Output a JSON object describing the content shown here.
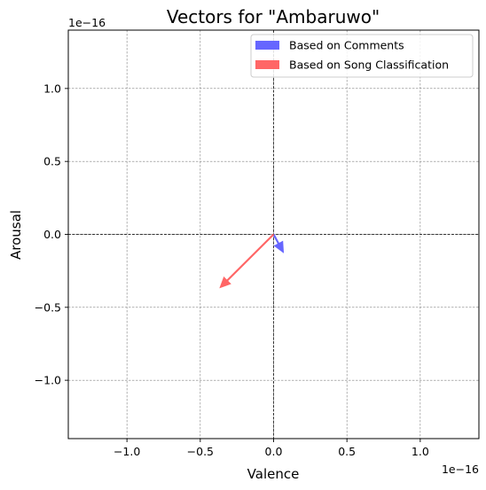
{
  "chart_data": {
    "type": "quiver",
    "title": "Vectors for \"Ambaruwo\"",
    "xlabel": "Valence",
    "ylabel": "Arousal",
    "x_offset_label": "1e−16",
    "y_offset_label": "1e−16",
    "xlim": [
      -1.4,
      1.4
    ],
    "ylim": [
      -1.4,
      1.4
    ],
    "xticks": [
      -1.0,
      -0.5,
      0.0,
      0.5,
      1.0
    ],
    "yticks": [
      -1.0,
      -0.5,
      0.0,
      0.5,
      1.0
    ],
    "xtick_labels": [
      "−1.0",
      "−0.5",
      "0.0",
      "0.5",
      "1.0"
    ],
    "ytick_labels": [
      "−1.0",
      "−0.5",
      "0.0",
      "0.5",
      "1.0"
    ],
    "grid": true,
    "legend_position": "top-right",
    "series": [
      {
        "name": "Based on Comments",
        "color": "#6666ff",
        "x0": 0.0,
        "y0": 0.0,
        "dx": 0.07,
        "dy": -0.13
      },
      {
        "name": "Based on Song Classification",
        "color": "#ff6666",
        "x0": 0.0,
        "y0": 0.0,
        "dx": -0.37,
        "dy": -0.37
      }
    ]
  }
}
